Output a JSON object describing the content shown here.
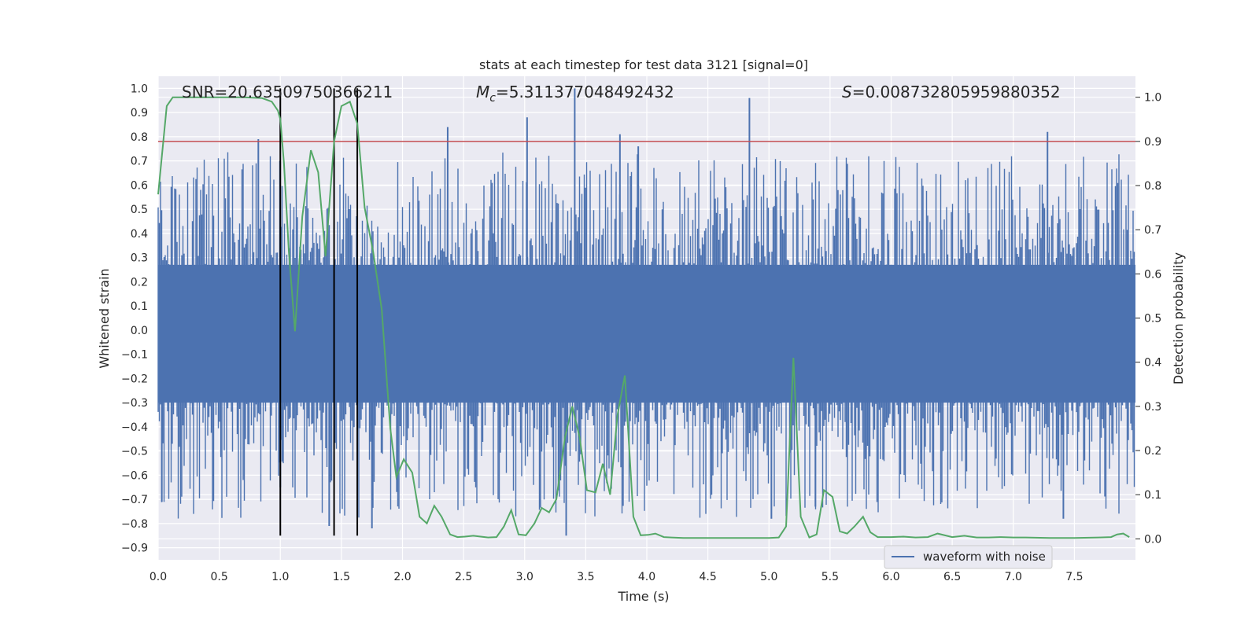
{
  "chart_data": {
    "type": "line",
    "title": "stats at each timestep for test data 3121 [signal=0]",
    "xlabel": "Time (s)",
    "ylabel": "Whitened strain",
    "y2label": "Detection probability",
    "xlim": [
      0.0,
      8.0
    ],
    "ylim": [
      -0.95,
      1.05
    ],
    "y2lim": [
      -0.0475,
      1.0475
    ],
    "x_ticks": [
      "0.0",
      "0.5",
      "1.0",
      "1.5",
      "2.0",
      "2.5",
      "3.0",
      "3.5",
      "4.0",
      "4.5",
      "5.0",
      "5.5",
      "6.0",
      "6.5",
      "7.0",
      "7.5"
    ],
    "y_ticks": [
      "−0.9",
      "−0.8",
      "−0.7",
      "−0.6",
      "−0.5",
      "−0.4",
      "−0.3",
      "−0.2",
      "−0.1",
      "0.0",
      "0.1",
      "0.2",
      "0.3",
      "0.4",
      "0.5",
      "0.6",
      "0.7",
      "0.8",
      "0.9",
      "1.0"
    ],
    "y2_ticks": [
      "0.0",
      "0.1",
      "0.2",
      "0.3",
      "0.4",
      "0.5",
      "0.6",
      "0.7",
      "0.8",
      "0.9",
      "1.0"
    ],
    "grid": true,
    "legend": {
      "placement": "lower-right",
      "entries": [
        "waveform with noise"
      ]
    },
    "annotations": {
      "snr": "SNR=20.63509750366211",
      "mc_symbol": "M",
      "mc_subscript": "c",
      "mc_value": "=5.311377048492432",
      "s_symbol": "S",
      "s_value": "=0.008732805959880352"
    },
    "threshold": {
      "value": 0.9,
      "axis": "right",
      "color": "#c44e52"
    },
    "vertical_markers": {
      "x": [
        1.0,
        1.44,
        1.63
      ],
      "y_from": -0.85,
      "y_to": 1.0,
      "color": "#000000"
    },
    "series": [
      {
        "name": "waveform with noise",
        "axis": "left",
        "color": "#4c72b0",
        "description": "dense whitened strain samples; core band about -0.3 to 0.27, spikes up to 1.0 and down to -0.85",
        "peaks": [
          {
            "x": 0.03,
            "y": -0.71
          },
          {
            "x": 0.82,
            "y": 0.79
          },
          {
            "x": 1.0,
            "y": -0.65
          },
          {
            "x": 1.4,
            "y": -0.81
          },
          {
            "x": 1.75,
            "y": -0.82
          },
          {
            "x": 2.37,
            "y": 0.84
          },
          {
            "x": 3.02,
            "y": 0.88
          },
          {
            "x": 3.34,
            "y": -0.85
          },
          {
            "x": 3.41,
            "y": 1.0
          },
          {
            "x": 3.78,
            "y": 0.81
          },
          {
            "x": 3.93,
            "y": 0.76
          },
          {
            "x": 4.84,
            "y": 0.96
          },
          {
            "x": 5.02,
            "y": -0.78
          },
          {
            "x": 5.38,
            "y": -0.73
          },
          {
            "x": 7.28,
            "y": 0.82
          },
          {
            "x": 7.41,
            "y": -0.78
          }
        ]
      },
      {
        "name": "",
        "axis": "right",
        "color": "#55a868",
        "x": [
          0.0,
          0.07,
          0.12,
          0.2,
          0.3,
          0.5,
          0.7,
          0.85,
          0.93,
          0.98,
          1.0,
          1.03,
          1.07,
          1.12,
          1.18,
          1.25,
          1.31,
          1.37,
          1.44,
          1.5,
          1.57,
          1.63,
          1.69,
          1.76,
          1.83,
          1.9,
          1.95,
          2.01,
          2.08,
          2.14,
          2.2,
          2.26,
          2.32,
          2.39,
          2.45,
          2.51,
          2.58,
          2.64,
          2.7,
          2.77,
          2.83,
          2.89,
          2.95,
          3.01,
          3.08,
          3.14,
          3.2,
          3.26,
          3.33,
          3.39,
          3.45,
          3.51,
          3.58,
          3.64,
          3.7,
          3.76,
          3.82,
          3.89,
          3.95,
          4.01,
          4.07,
          4.14,
          4.2,
          4.3,
          4.5,
          4.8,
          5.0,
          5.08,
          5.14,
          5.2,
          5.26,
          5.33,
          5.39,
          5.45,
          5.52,
          5.58,
          5.64,
          5.7,
          5.77,
          5.83,
          5.89,
          6.0,
          6.1,
          6.2,
          6.3,
          6.38,
          6.5,
          6.6,
          6.7,
          6.8,
          6.9,
          7.0,
          7.1,
          7.3,
          7.5,
          7.7,
          7.8,
          7.85,
          7.9,
          7.95
        ],
        "y": [
          0.78,
          0.98,
          1.0,
          1.0,
          1.0,
          1.0,
          1.0,
          0.998,
          0.99,
          0.97,
          0.95,
          0.85,
          0.65,
          0.47,
          0.73,
          0.88,
          0.83,
          0.64,
          0.9,
          0.98,
          0.99,
          0.94,
          0.75,
          0.65,
          0.52,
          0.25,
          0.14,
          0.18,
          0.15,
          0.05,
          0.035,
          0.075,
          0.05,
          0.01,
          0.004,
          0.005,
          0.007,
          0.005,
          0.003,
          0.004,
          0.028,
          0.065,
          0.01,
          0.008,
          0.035,
          0.07,
          0.06,
          0.09,
          0.23,
          0.3,
          0.23,
          0.11,
          0.105,
          0.17,
          0.1,
          0.28,
          0.37,
          0.05,
          0.008,
          0.009,
          0.012,
          0.004,
          0.003,
          0.002,
          0.002,
          0.002,
          0.002,
          0.003,
          0.028,
          0.41,
          0.05,
          0.003,
          0.01,
          0.11,
          0.095,
          0.017,
          0.012,
          0.028,
          0.05,
          0.015,
          0.004,
          0.004,
          0.005,
          0.003,
          0.004,
          0.012,
          0.004,
          0.007,
          0.003,
          0.003,
          0.004,
          0.003,
          0.003,
          0.002,
          0.002,
          0.003,
          0.004,
          0.01,
          0.012,
          0.004
        ]
      }
    ]
  }
}
